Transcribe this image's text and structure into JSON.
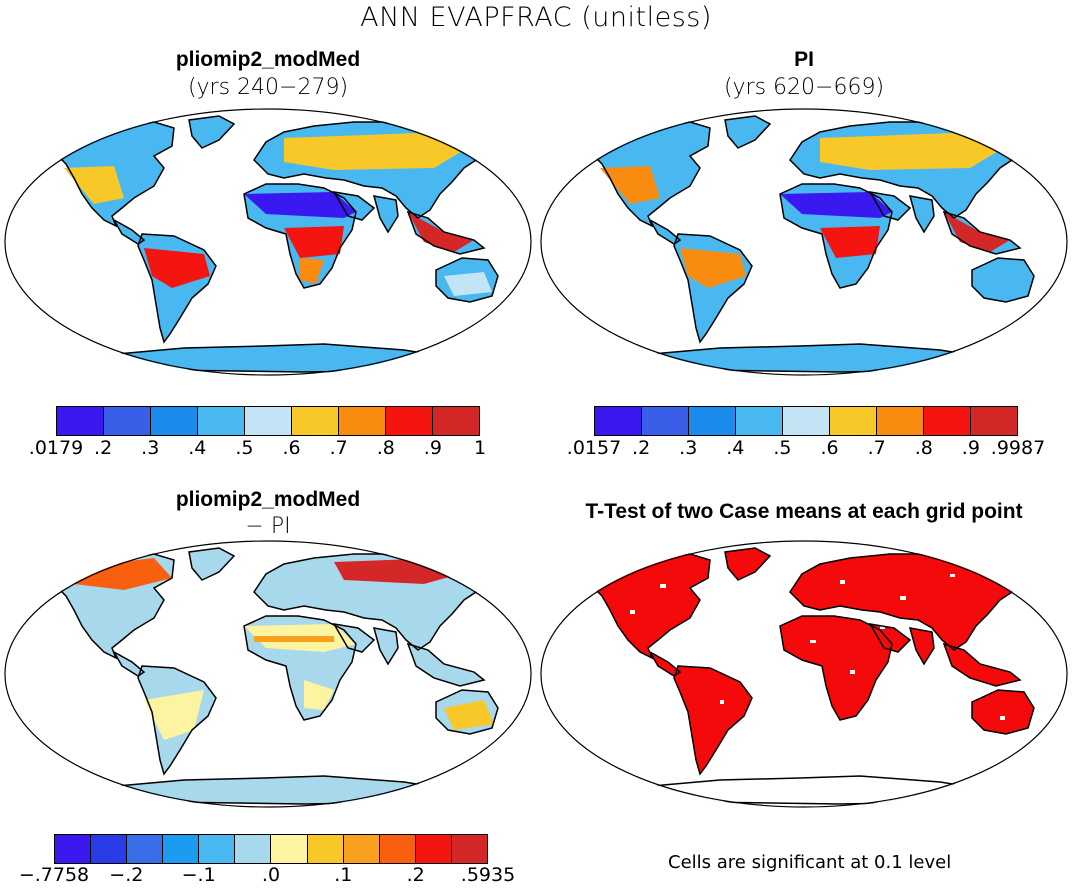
{
  "figure_title": "ANN EVAPFRAC (unitless)",
  "panels": [
    {
      "title": "pliomip2_modMed",
      "subtitle": "(yrs 240−279)"
    },
    {
      "title": "PI",
      "subtitle": "(yrs 620−669)"
    },
    {
      "title": "pliomip2_modMed",
      "subtitle": "− PI"
    },
    {
      "title": "T-Test of two Case means at each grid point",
      "subtitle": ""
    }
  ],
  "colorbars": {
    "model": {
      "colors": [
        "#3a18f0",
        "#3a5ee8",
        "#1b8cec",
        "#4ab8f0",
        "#c2e4f4",
        "#f8c828",
        "#f88c10",
        "#f41410",
        "#d42828"
      ],
      "ticks": [
        ".0179",
        ".2",
        ".3",
        ".4",
        ".5",
        ".6",
        ".7",
        ".8",
        ".9",
        "1"
      ]
    },
    "pi": {
      "colors": [
        "#3a18f0",
        "#3a5ee8",
        "#1b8cec",
        "#4ab8f0",
        "#c2e4f4",
        "#f8c828",
        "#f88c10",
        "#f41410",
        "#d42828"
      ],
      "ticks": [
        ".0157",
        ".2",
        ".3",
        ".4",
        ".5",
        ".6",
        ".7",
        ".8",
        ".9",
        ".9987"
      ]
    },
    "diff": {
      "colors": [
        "#3a18f0",
        "#2a3ce8",
        "#3a6ee8",
        "#1b9cf0",
        "#4ab8f0",
        "#a8d8ec",
        "#fcf4a0",
        "#f8c828",
        "#f8a020",
        "#f86010",
        "#f41410",
        "#d42828"
      ],
      "ticks": [
        "−.7758",
        "−.2",
        "−.1",
        ".0",
        ".1",
        ".2",
        ".5935"
      ]
    }
  },
  "significance_note": "Cells are significant at 0.1 level",
  "legend_colors": {
    "significant": "#f40a0a",
    "land_outline": "#000000"
  }
}
